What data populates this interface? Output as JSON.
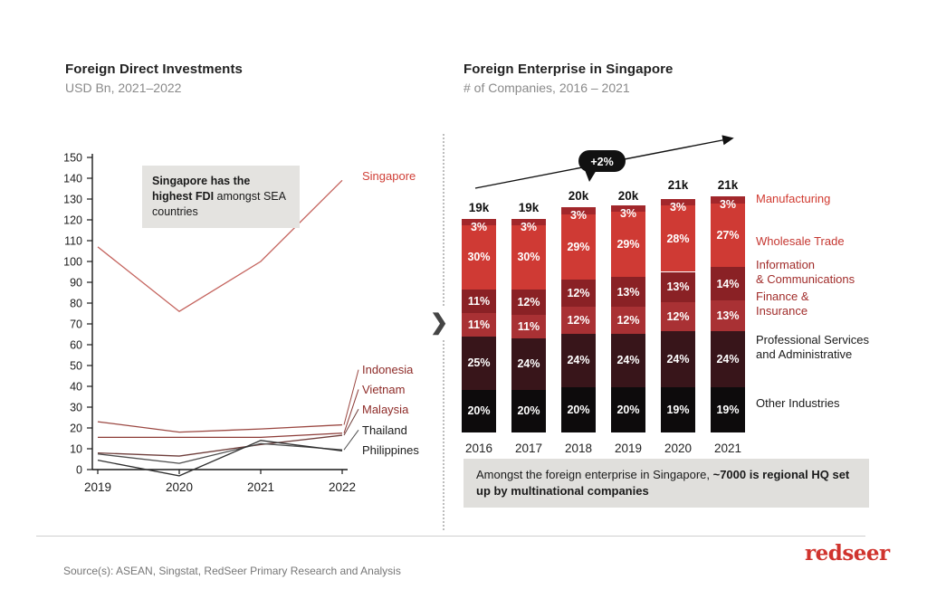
{
  "left_panel": {
    "title": "Foreign Direct Investments",
    "subtitle": "USD Bn, 2021–2022",
    "callout_bold": "Singapore has the highest FDI",
    "callout_rest": " amongst SEA countries"
  },
  "right_panel": {
    "title": "Foreign Enterprise in Singapore",
    "subtitle": "# of Companies, 2016 – 2021",
    "note_normal": "Amongst the foreign enterprise in Singapore, ",
    "note_bold": "~7000 is regional HQ set up by multinational companies"
  },
  "divider": {
    "chevron": "❯"
  },
  "footer": {
    "source": "Source(s): ASEAN, Singstat, RedSeer Primary Research and Analysis",
    "logo": "redseer",
    "logo_color": "#d0342e"
  },
  "chart_data": [
    {
      "type": "line",
      "title": "Foreign Direct Investments",
      "ylabel": "USD Bn",
      "x": [
        "2019",
        "2020",
        "2021",
        "2022"
      ],
      "ylim": [
        0,
        150
      ],
      "ytick_step": 10,
      "grid": false,
      "legend_position": "right-labels",
      "annotation": "Singapore has the highest FDI amongst SEA countries",
      "series": [
        {
          "name": "Singapore",
          "values": [
            107,
            76,
            100,
            139
          ],
          "color": "#c4635d",
          "label_color": "#d04038",
          "label_value": 141
        },
        {
          "name": "Indonesia",
          "values": [
            23,
            18,
            19.5,
            21.5
          ],
          "color": "#9b4842",
          "label_color": "#8e2b28",
          "label_value": 48
        },
        {
          "name": "Vietnam",
          "values": [
            15.5,
            15.5,
            15.5,
            17.5
          ],
          "color": "#8c3a36",
          "label_color": "#8e2b28",
          "label_value": 38.5
        },
        {
          "name": "Malaysia",
          "values": [
            8,
            6.5,
            12,
            16.5
          ],
          "color": "#6e3d3a",
          "label_color": "#8e2b28",
          "label_value": 29
        },
        {
          "name": "Thailand",
          "values": [
            7.5,
            3,
            12.5,
            9.5
          ],
          "color": "#4d4d4d",
          "label_color": "#1d1d1d",
          "label_value": 19
        },
        {
          "name": "Philippines",
          "values": [
            4.5,
            -3,
            14,
            9
          ],
          "color": "#2f2f2f",
          "label_color": "#1d1d1d",
          "label_value": 9.3
        }
      ]
    },
    {
      "type": "bar",
      "stacked": true,
      "title": "Foreign Enterprise in Singapore",
      "ylabel": "# of Companies",
      "categories": [
        "2016",
        "2017",
        "2018",
        "2019",
        "2020",
        "2021"
      ],
      "bar_totals_label": [
        "19k",
        "19k",
        "20k",
        "20k",
        "21k",
        "21k"
      ],
      "bar_totals_k": [
        19,
        19,
        20,
        20,
        21,
        21
      ],
      "trend_annotation": "+2%",
      "series": [
        {
          "name": "Manufacturing",
          "values": [
            3,
            3,
            3,
            3,
            3,
            3
          ],
          "color": "#a2272b",
          "label_color": "#d13a30",
          "legend_lines": [
            "Manufacturing"
          ]
        },
        {
          "name": "Wholesale Trade",
          "values": [
            30,
            30,
            29,
            29,
            28,
            27
          ],
          "color": "#cf3a34",
          "label_color": "#c53731",
          "legend_lines": [
            "Wholesale Trade"
          ]
        },
        {
          "name": "Information & Communications",
          "values": [
            11,
            12,
            12,
            13,
            13,
            14
          ],
          "color": "#8a2125",
          "label_color": "#a12c2a",
          "legend_lines": [
            "Information",
            "& Communications"
          ]
        },
        {
          "name": "Finance & Insurance",
          "values": [
            11,
            11,
            12,
            12,
            12,
            13
          ],
          "color": "#a93134",
          "label_color": "#a12c2a",
          "legend_lines": [
            "Finance &",
            "Insurance"
          ]
        },
        {
          "name": "Professional Services and Administrative",
          "values": [
            25,
            24,
            24,
            24,
            24,
            24
          ],
          "color": "#38151a",
          "label_color": "#1a1a1a",
          "legend_lines": [
            "Professional Services",
            "and Administrative"
          ]
        },
        {
          "name": "Other Industries",
          "values": [
            20,
            20,
            20,
            20,
            19,
            19
          ],
          "color": "#0d0b0c",
          "label_color": "#1a1a1a",
          "legend_lines": [
            "Other Industries"
          ]
        }
      ],
      "note": "Amongst the foreign enterprise in Singapore, ~7000 is regional HQ set up by multinational companies"
    }
  ]
}
